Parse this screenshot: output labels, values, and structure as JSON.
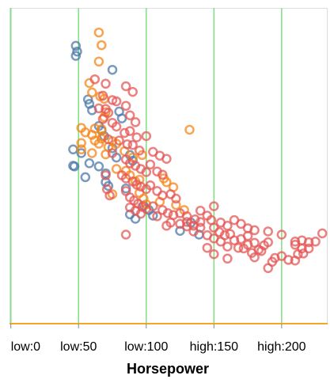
{
  "chart_data": {
    "type": "scatter",
    "title": "",
    "xlabel": "Horsepower",
    "ylabel": "",
    "x_tick_values": [
      0,
      50,
      100,
      150,
      200
    ],
    "x_tick_labels": [
      "low:0",
      "low:50",
      "low:100",
      "high:150",
      "high:200"
    ],
    "xlim": [
      -1,
      234
    ],
    "ylim": [
      0,
      50
    ],
    "grid": "vertical",
    "legend": "none",
    "colors": {
      "series_a": "#4c78a8",
      "series_b": "#f58518",
      "series_c": "#e45756",
      "grid": "#7ee07e",
      "x_axis": "#f5a623",
      "frame": "#dddddd"
    },
    "series": [
      {
        "color": "#4c78a8",
        "points": [
          [
            48,
            44.0
          ],
          [
            49,
            43.1
          ],
          [
            48,
            42.4
          ],
          [
            75,
            40.2
          ],
          [
            57,
            35.5
          ],
          [
            58,
            34.8
          ],
          [
            60,
            33.8
          ],
          [
            80,
            33.6
          ],
          [
            82,
            32.5
          ],
          [
            65,
            31.3
          ],
          [
            67,
            30.6
          ],
          [
            69,
            29.7
          ],
          [
            46,
            27.6
          ],
          [
            52,
            27.0
          ],
          [
            75,
            27.8
          ],
          [
            78,
            26.3
          ],
          [
            88,
            26.7
          ],
          [
            90,
            25.8
          ],
          [
            46,
            25.0
          ],
          [
            47,
            24.9
          ],
          [
            58,
            25.4
          ],
          [
            65,
            24.9
          ],
          [
            70,
            23.8
          ],
          [
            55,
            23.2
          ],
          [
            70,
            22.4
          ],
          [
            72,
            21.8
          ],
          [
            85,
            21.4
          ],
          [
            98,
            18.7
          ],
          [
            102,
            18.0
          ],
          [
            105,
            17.1
          ],
          [
            88,
            17.3
          ],
          [
            92,
            16.6
          ],
          [
            133,
            16.0
          ],
          [
            139,
            14.1
          ],
          [
            125,
            14.7
          ]
        ]
      },
      {
        "color": "#f58518",
        "points": [
          [
            65,
            46.1
          ],
          [
            67,
            44.1
          ],
          [
            65,
            41.5
          ],
          [
            58,
            38.1
          ],
          [
            60,
            36.6
          ],
          [
            66,
            36.0
          ],
          [
            69,
            35.6
          ],
          [
            70,
            33.5
          ],
          [
            69,
            32.7
          ],
          [
            52,
            31.0
          ],
          [
            55,
            30.3
          ],
          [
            62,
            30.9
          ],
          [
            67,
            30.8
          ],
          [
            67,
            29.3
          ],
          [
            60,
            29.9
          ],
          [
            68,
            29.7
          ],
          [
            62,
            29.0
          ],
          [
            65,
            28.5
          ],
          [
            75,
            28.9
          ],
          [
            72,
            28.0
          ],
          [
            78,
            28.5
          ],
          [
            84,
            27.3
          ],
          [
            52,
            28.6
          ],
          [
            52,
            27.6
          ],
          [
            60,
            27.0
          ],
          [
            70,
            26.8
          ],
          [
            90,
            26.3
          ],
          [
            97,
            26.7
          ],
          [
            132,
            30.7
          ],
          [
            78,
            24.5
          ],
          [
            85,
            24.2
          ],
          [
            88,
            23.5
          ],
          [
            92,
            22.5
          ],
          [
            95,
            22.8
          ],
          [
            113,
            23.0
          ],
          [
            115,
            22.4
          ],
          [
            120,
            21.6
          ],
          [
            75,
            20.5
          ],
          [
            95,
            20.7
          ],
          [
            98,
            19.8
          ],
          [
            110,
            19.3
          ],
          [
            100,
            18.9
          ],
          [
            122,
            18.8
          ],
          [
            128,
            18.0
          ]
        ]
      },
      {
        "color": "#e45756",
        "points": [
          [
            62,
            38.7
          ],
          [
            70,
            38.0
          ],
          [
            85,
            37.6
          ],
          [
            90,
            36.7
          ],
          [
            68,
            36.1
          ],
          [
            75,
            35.4
          ],
          [
            78,
            35.2
          ],
          [
            85,
            34.5
          ],
          [
            65,
            34.1
          ],
          [
            70,
            34.0
          ],
          [
            72,
            33.4
          ],
          [
            88,
            33.0
          ],
          [
            92,
            31.9
          ],
          [
            68,
            32.4
          ],
          [
            75,
            31.8
          ],
          [
            78,
            31.2
          ],
          [
            84,
            30.2
          ],
          [
            88,
            30.5
          ],
          [
            93,
            29.5
          ],
          [
            100,
            29.7
          ],
          [
            72,
            29.2
          ],
          [
            80,
            29.0
          ],
          [
            86,
            28.4
          ],
          [
            90,
            28.3
          ],
          [
            95,
            27.4
          ],
          [
            105,
            27.2
          ],
          [
            110,
            26.6
          ],
          [
            115,
            26.1
          ],
          [
            75,
            27.0
          ],
          [
            85,
            26.0
          ],
          [
            88,
            25.4
          ],
          [
            92,
            25.0
          ],
          [
            96,
            24.5
          ],
          [
            100,
            24.0
          ],
          [
            103,
            25.2
          ],
          [
            108,
            24.1
          ],
          [
            112,
            23.6
          ],
          [
            70,
            23.5
          ],
          [
            82,
            23.5
          ],
          [
            85,
            23.0
          ],
          [
            90,
            22.5
          ],
          [
            93,
            22.0
          ],
          [
            96,
            21.7
          ],
          [
            100,
            21.3
          ],
          [
            103,
            21.9
          ],
          [
            108,
            21.0
          ],
          [
            112,
            20.3
          ],
          [
            118,
            20.5
          ],
          [
            122,
            19.8
          ],
          [
            71,
            21.3
          ],
          [
            73,
            20.3
          ],
          [
            85,
            21.0
          ],
          [
            88,
            20.0
          ],
          [
            91,
            19.5
          ],
          [
            94,
            19.0
          ],
          [
            97,
            18.5
          ],
          [
            100,
            18.2
          ],
          [
            105,
            18.6
          ],
          [
            112,
            18.0
          ],
          [
            116,
            17.5
          ],
          [
            120,
            17.2
          ],
          [
            125,
            17.5
          ],
          [
            130,
            17.0
          ],
          [
            136,
            16.5
          ],
          [
            140,
            17.9
          ],
          [
            145,
            17.1
          ],
          [
            150,
            18.6
          ],
          [
            88,
            18.4
          ],
          [
            92,
            17.9
          ],
          [
            96,
            17.4
          ],
          [
            108,
            17.0
          ],
          [
            140,
            16.1
          ],
          [
            148,
            16.4
          ],
          [
            155,
            16.0
          ],
          [
            160,
            15.5
          ],
          [
            165,
            16.4
          ],
          [
            170,
            15.8
          ],
          [
            175,
            15.1
          ],
          [
            180,
            14.8
          ],
          [
            150,
            15.2
          ],
          [
            154,
            14.5
          ],
          [
            158,
            14.0
          ],
          [
            162,
            14.2
          ],
          [
            130,
            15.4
          ],
          [
            135,
            14.6
          ],
          [
            140,
            15.2
          ],
          [
            145,
            14.0
          ],
          [
            150,
            13.5
          ],
          [
            155,
            13.0
          ],
          [
            165,
            13.2
          ],
          [
            170,
            13.4
          ],
          [
            175,
            12.5
          ],
          [
            180,
            12.8
          ],
          [
            190,
            12.9
          ],
          [
            175,
            13.9
          ],
          [
            190,
            14.6
          ],
          [
            200,
            14.1
          ],
          [
            210,
            13.0
          ],
          [
            215,
            13.2
          ],
          [
            220,
            12.9
          ],
          [
            225,
            13.0
          ],
          [
            230,
            14.3
          ],
          [
            215,
            11.9
          ],
          [
            210,
            12.5
          ],
          [
            220,
            11.9
          ],
          [
            150,
            11.0
          ],
          [
            145,
            12.0
          ],
          [
            160,
            12.2
          ],
          [
            85,
            14.1
          ],
          [
            115,
            15.5
          ],
          [
            118,
            16.0
          ],
          [
            130,
            16.1
          ],
          [
            135,
            15.5
          ],
          [
            160,
            10.3
          ],
          [
            180,
            10.5
          ],
          [
            185,
            11.5
          ],
          [
            195,
            10.4
          ],
          [
            200,
            10.7
          ],
          [
            210,
            10.0
          ],
          [
            216,
            11.1
          ],
          [
            212,
            11.0
          ],
          [
            205,
            10.1
          ],
          [
            193,
            9.8
          ],
          [
            190,
            8.8
          ],
          [
            183,
            11.7
          ],
          [
            187,
            12.4
          ],
          [
            168,
            12.0
          ],
          [
            172,
            11.9
          ],
          [
            178,
            11.2
          ],
          [
            125,
            15.8
          ]
        ]
      }
    ]
  }
}
